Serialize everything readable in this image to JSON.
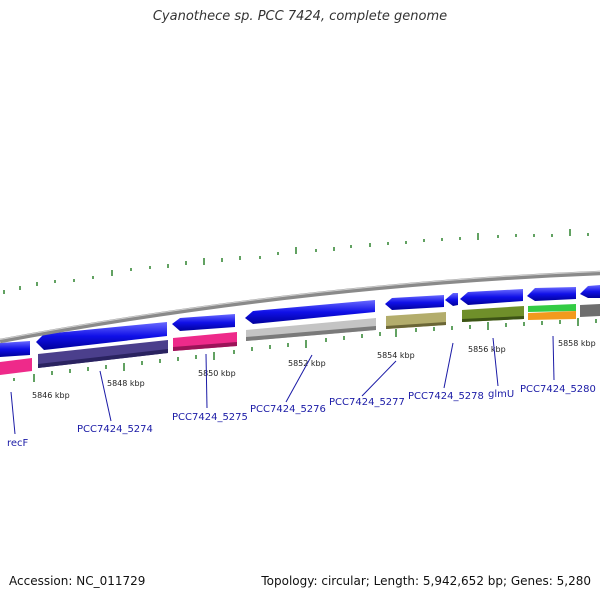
{
  "title": "Cyanothece sp. PCC 7424, complete genome",
  "footer": {
    "accession": "Accession: NC_011729",
    "summary": "Topology: circular; Length: 5,942,652 bp; Genes: 5,280"
  },
  "ticks": [
    "5846 kbp",
    "5848 kbp",
    "5850 kbp",
    "5852 kbp",
    "5854 kbp",
    "5856 kbp",
    "5858 kbp"
  ],
  "genes": [
    "recF",
    "PCC7424_5274",
    "PCC7424_5275",
    "PCC7424_5276",
    "PCC7424_5277",
    "PCC7424_5278",
    "glmU",
    "PCC7424_5280"
  ],
  "colors": {
    "cds": "#1010e8",
    "backbone": "#8a8a8a",
    "tick": "#1f7a1f",
    "label": "#1a1aa6",
    "purple": "#4b3f8c",
    "pink": "#ee2a8a",
    "grey": "#c4c4c4",
    "khaki": "#b3ad6c",
    "olive": "#6f8f2a",
    "green": "#33cc44",
    "orange": "#f29a1e",
    "darkgrey": "#6e6e6e"
  }
}
